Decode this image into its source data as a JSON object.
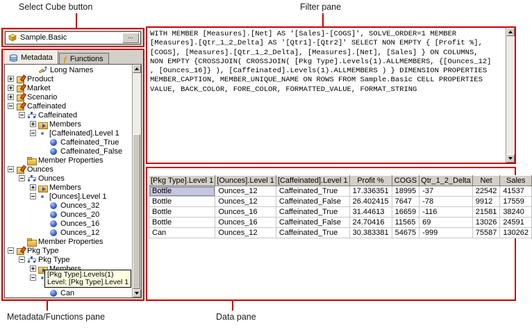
{
  "callouts": {
    "select_cube": "Select Cube button",
    "filter_pane": "Filter pane",
    "metadata_pane": "Metadata/Functions pane",
    "data_pane": "Data pane"
  },
  "cube_selector": {
    "value": "Sample.Basic",
    "browse_label": "..."
  },
  "tabs": [
    {
      "label": "Metadata",
      "selected": true
    },
    {
      "label": "Functions",
      "selected": false
    }
  ],
  "tree": {
    "header": "Long Names",
    "nodes": [
      {
        "indent": 0,
        "expander": "plus",
        "icon": "dimension",
        "label": "Product"
      },
      {
        "indent": 0,
        "expander": "plus",
        "icon": "dimension",
        "label": "Market"
      },
      {
        "indent": 0,
        "expander": "plus",
        "icon": "dimension",
        "label": "Scenario"
      },
      {
        "indent": 0,
        "expander": "minus",
        "icon": "dimension",
        "label": "Caffeinated"
      },
      {
        "indent": 1,
        "expander": "minus",
        "icon": "hierarchy",
        "label": "Caffeinated"
      },
      {
        "indent": 2,
        "expander": "plus",
        "icon": "members",
        "label": "Members"
      },
      {
        "indent": 2,
        "expander": "minus",
        "icon": "level",
        "label": "[Caffeinated].Level 1"
      },
      {
        "indent": 3,
        "expander": "none",
        "icon": "member",
        "label": "Caffeinated_True"
      },
      {
        "indent": 3,
        "expander": "none",
        "icon": "member",
        "label": "Caffeinated_False"
      },
      {
        "indent": 1,
        "expander": "none",
        "icon": "folder",
        "label": "Member Properties"
      },
      {
        "indent": 0,
        "expander": "minus",
        "icon": "dimension",
        "label": "Ounces"
      },
      {
        "indent": 1,
        "expander": "minus",
        "icon": "hierarchy",
        "label": "Ounces"
      },
      {
        "indent": 2,
        "expander": "plus",
        "icon": "members",
        "label": "Members"
      },
      {
        "indent": 2,
        "expander": "minus",
        "icon": "level",
        "label": "[Ounces].Level 1"
      },
      {
        "indent": 3,
        "expander": "none",
        "icon": "member",
        "label": "Ounces_32"
      },
      {
        "indent": 3,
        "expander": "none",
        "icon": "member",
        "label": "Ounces_20"
      },
      {
        "indent": 3,
        "expander": "none",
        "icon": "member",
        "label": "Ounces_16"
      },
      {
        "indent": 3,
        "expander": "none",
        "icon": "member",
        "label": "Ounces_12"
      },
      {
        "indent": 1,
        "expander": "none",
        "icon": "folder",
        "label": "Member Properties"
      },
      {
        "indent": 0,
        "expander": "minus",
        "icon": "dimension",
        "label": "Pkg Type"
      },
      {
        "indent": 1,
        "expander": "minus",
        "icon": "hierarchy",
        "label": "Pkg Type"
      },
      {
        "indent": 2,
        "expander": "plus",
        "icon": "members",
        "label": "Members"
      },
      {
        "indent": 2,
        "expander": "minus",
        "icon": "level",
        "label": "",
        "tooltip_gap": true
      },
      {
        "indent": 3,
        "expander": "none",
        "icon": "member",
        "label": "Can"
      }
    ]
  },
  "tooltip": {
    "line1": "[Pkg Type].Levels(1)",
    "line2": "Level: [Pkg Type].Level 1"
  },
  "filter_pane": {
    "query_lines": [
      "WITH MEMBER [Measures].[Net] AS '[Sales]-[COGS]', SOLVE_ORDER=1 MEMBER",
      "[Measures].[Qtr_1_2_Delta] AS '[Qtr1]-[Qtr2]' SELECT NON EMPTY { [Profit %],",
      "[COGS], [Measures].[Qtr_1_2_Delta], [Measures].[Net], [Sales] } ON COLUMNS,",
      "NON EMPTY {CROSSJOIN( CROSSJOIN( [Pkg Type].Levels(1).ALLMEMBERS, {[Ounces_12]",
      ", [Ounces_16]} ), [Caffeinated].Levels(1).ALLMEMBERS ) } DIMENSION PROPERTIES",
      "MEMBER_CAPTION, MEMBER_UNIQUE_NAME ON ROWS FROM Sample.Basic CELL PROPERTIES",
      "VALUE, BACK_COLOR, FORE_COLOR, FORMATTED_VALUE, FORMAT_STRING"
    ]
  },
  "table": {
    "columns": [
      "[Pkg Type].Level 1",
      "[Ounces].Level 1",
      "[Caffeinated].Level 1",
      "Profit %",
      "COGS",
      "Qtr_1_2_Delta",
      "Net",
      "Sales"
    ],
    "rows": [
      [
        "Bottle",
        "Ounces_12",
        "Caffeinated_True",
        "17.336351",
        "18995",
        "-37",
        "22542",
        "41537"
      ],
      [
        "Bottle",
        "Ounces_12",
        "Caffeinated_False",
        "26.402415",
        "7647",
        "-78",
        "9912",
        "17559"
      ],
      [
        "Bottle",
        "Ounces_16",
        "Caffeinated_True",
        "31.44613",
        "16659",
        "-116",
        "21581",
        "38240"
      ],
      [
        "Bottle",
        "Ounces_16",
        "Caffeinated_False",
        "24.70416",
        "11565",
        "69",
        "13026",
        "24591"
      ],
      [
        "Can",
        "Ounces_12",
        "Caffeinated_True",
        "30.383381",
        "54675",
        "-999",
        "75587",
        "130262"
      ]
    ]
  },
  "colors": {
    "callout_red": "#cc0000",
    "chrome_gray": "#d4d0c8",
    "selected_cell_bg": "#c6c6e0",
    "tooltip_bg": "#ffffe1",
    "grid_line": "#c6c6c6"
  }
}
